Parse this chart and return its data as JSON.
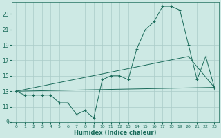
{
  "xlabel": "Humidex (Indice chaleur)",
  "background_color": "#cde9e4",
  "grid_color": "#aaccc8",
  "line_color": "#1a6b5a",
  "xlim": [
    -0.5,
    23.5
  ],
  "ylim": [
    9,
    24.5
  ],
  "xticks": [
    0,
    1,
    2,
    3,
    4,
    5,
    6,
    7,
    8,
    9,
    10,
    11,
    12,
    13,
    14,
    15,
    16,
    17,
    18,
    19,
    20,
    21,
    22,
    23
  ],
  "yticks": [
    9,
    11,
    13,
    15,
    17,
    19,
    21,
    23
  ],
  "line1_x": [
    0,
    1,
    2,
    3,
    4,
    5,
    6,
    7,
    8,
    9,
    10,
    11,
    12,
    13,
    14,
    15,
    16,
    17,
    18,
    19,
    20,
    21,
    22,
    23
  ],
  "line1_y": [
    13,
    12.5,
    12.5,
    12.5,
    12.5,
    11.5,
    11.5,
    10.0,
    10.5,
    9.5,
    14.5,
    15.0,
    15.0,
    14.5,
    18.5,
    21.0,
    22.0,
    24.0,
    24.0,
    23.5,
    19.0,
    14.5,
    17.5,
    13.5
  ],
  "line2_x": [
    0,
    20,
    23
  ],
  "line2_y": [
    13,
    17.5,
    13.5
  ],
  "line3_x": [
    0,
    23
  ],
  "line3_y": [
    13,
    13.5
  ],
  "figsize": [
    3.2,
    2.0
  ],
  "dpi": 100
}
